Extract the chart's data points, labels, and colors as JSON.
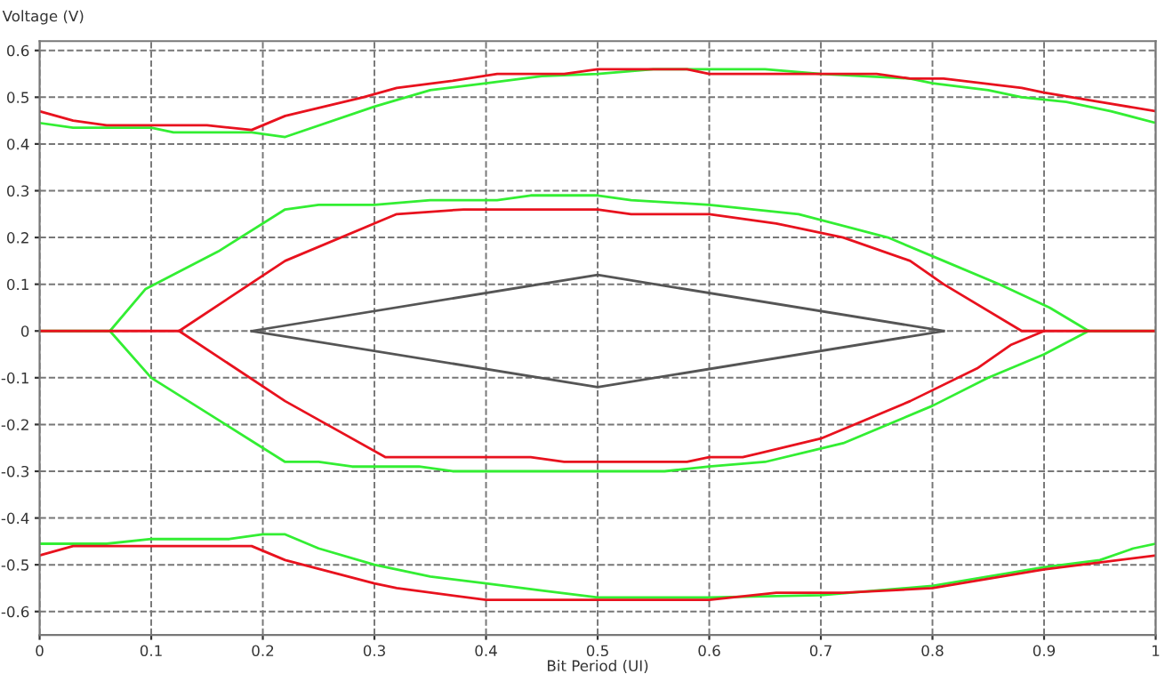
{
  "chart_data": {
    "type": "line",
    "xlabel": "Bit Period (UI)",
    "ylabel": "Voltage (V)",
    "xlim": [
      0,
      1
    ],
    "ylim": [
      -0.65,
      0.62
    ],
    "xticks": [
      0,
      0.1,
      0.2,
      0.3,
      0.4,
      0.5,
      0.6,
      0.7,
      0.8,
      0.9,
      1
    ],
    "yticks": [
      -0.6,
      -0.5,
      -0.4,
      -0.3,
      -0.2,
      -0.1,
      0,
      0.1,
      0.2,
      0.3,
      0.4,
      0.5,
      0.6
    ],
    "grid": true,
    "legend": false,
    "marker": "none",
    "line_style": "solid",
    "series": [
      {
        "color": "#555555",
        "x": [
          0.19,
          0.5,
          0.81
        ],
        "values": [
          0,
          0.12,
          0
        ]
      },
      {
        "color": "#555555",
        "x": [
          0.19,
          0.5,
          0.81
        ],
        "values": [
          0,
          -0.12,
          0
        ]
      },
      {
        "color": "#33ee33",
        "x": [
          0,
          0.03,
          0.1,
          0.12,
          0.19,
          0.22,
          0.3,
          0.35,
          0.4,
          0.45,
          0.5,
          0.55,
          0.6,
          0.65,
          0.7,
          0.78,
          0.8,
          0.85,
          0.88,
          0.92,
          0.96,
          1
        ],
        "values": [
          0.445,
          0.435,
          0.435,
          0.425,
          0.425,
          0.415,
          0.48,
          0.515,
          0.53,
          0.545,
          0.55,
          0.56,
          0.56,
          0.56,
          0.55,
          0.54,
          0.53,
          0.515,
          0.5,
          0.49,
          0.47,
          0.445
        ]
      },
      {
        "color": "#33ee33",
        "x": [
          0,
          0.063,
          0.095,
          0.16,
          0.22,
          0.25,
          0.3,
          0.35,
          0.41,
          0.44,
          0.5,
          0.53,
          0.6,
          0.68,
          0.76,
          0.81,
          0.86,
          0.905,
          0.94,
          1
        ],
        "values": [
          0,
          0,
          0.09,
          0.17,
          0.26,
          0.27,
          0.27,
          0.28,
          0.28,
          0.29,
          0.29,
          0.28,
          0.27,
          0.25,
          0.2,
          0.15,
          0.1,
          0.05,
          0,
          0
        ]
      },
      {
        "color": "#33ee33",
        "x": [
          0.063,
          0.1,
          0.16,
          0.2,
          0.22,
          0.25,
          0.28,
          0.34,
          0.37,
          0.56,
          0.6,
          0.65,
          0.72,
          0.8,
          0.85,
          0.9,
          0.94
        ],
        "values": [
          0,
          -0.1,
          -0.19,
          -0.25,
          -0.28,
          -0.28,
          -0.29,
          -0.29,
          -0.3,
          -0.3,
          -0.29,
          -0.28,
          -0.24,
          -0.16,
          -0.1,
          -0.05,
          0
        ]
      },
      {
        "color": "#33ee33",
        "x": [
          0,
          0.06,
          0.1,
          0.17,
          0.2,
          0.22,
          0.25,
          0.3,
          0.35,
          0.4,
          0.45,
          0.5,
          0.6,
          0.7,
          0.8,
          0.9,
          0.95,
          0.98,
          1
        ],
        "values": [
          -0.455,
          -0.455,
          -0.445,
          -0.445,
          -0.435,
          -0.435,
          -0.465,
          -0.5,
          -0.525,
          -0.54,
          -0.555,
          -0.57,
          -0.57,
          -0.565,
          -0.545,
          -0.505,
          -0.49,
          -0.465,
          -0.455
        ]
      },
      {
        "color": "#e8121e",
        "x": [
          0,
          0.03,
          0.06,
          0.15,
          0.19,
          0.22,
          0.29,
          0.32,
          0.37,
          0.41,
          0.47,
          0.5,
          0.58,
          0.6,
          0.7,
          0.75,
          0.78,
          0.81,
          0.88,
          0.9,
          0.95,
          1
        ],
        "values": [
          0.47,
          0.45,
          0.44,
          0.44,
          0.43,
          0.46,
          0.5,
          0.52,
          0.535,
          0.55,
          0.55,
          0.56,
          0.56,
          0.55,
          0.55,
          0.55,
          0.54,
          0.54,
          0.52,
          0.51,
          0.49,
          0.47
        ]
      },
      {
        "color": "#e8121e",
        "x": [
          0,
          0.125,
          0.22,
          0.3,
          0.32,
          0.38,
          0.5,
          0.53,
          0.6,
          0.66,
          0.72,
          0.78,
          0.81,
          0.88,
          0.9,
          1
        ],
        "values": [
          0,
          0,
          0.15,
          0.23,
          0.25,
          0.26,
          0.26,
          0.25,
          0.25,
          0.23,
          0.2,
          0.15,
          0.1,
          0,
          0,
          0
        ]
      },
      {
        "color": "#e8121e",
        "x": [
          0.125,
          0.22,
          0.31,
          0.44,
          0.47,
          0.58,
          0.6,
          0.63,
          0.7,
          0.78,
          0.84,
          0.87,
          0.9
        ],
        "values": [
          0,
          -0.15,
          -0.27,
          -0.27,
          -0.28,
          -0.28,
          -0.27,
          -0.27,
          -0.23,
          -0.15,
          -0.08,
          -0.03,
          0
        ]
      },
      {
        "color": "#e8121e",
        "x": [
          0,
          0.03,
          0.19,
          0.22,
          0.3,
          0.32,
          0.4,
          0.5,
          0.6,
          0.66,
          0.72,
          0.8,
          0.9,
          1
        ],
        "values": [
          -0.48,
          -0.46,
          -0.46,
          -0.49,
          -0.54,
          -0.55,
          -0.575,
          -0.575,
          -0.575,
          -0.56,
          -0.56,
          -0.55,
          -0.51,
          -0.48
        ]
      }
    ]
  }
}
